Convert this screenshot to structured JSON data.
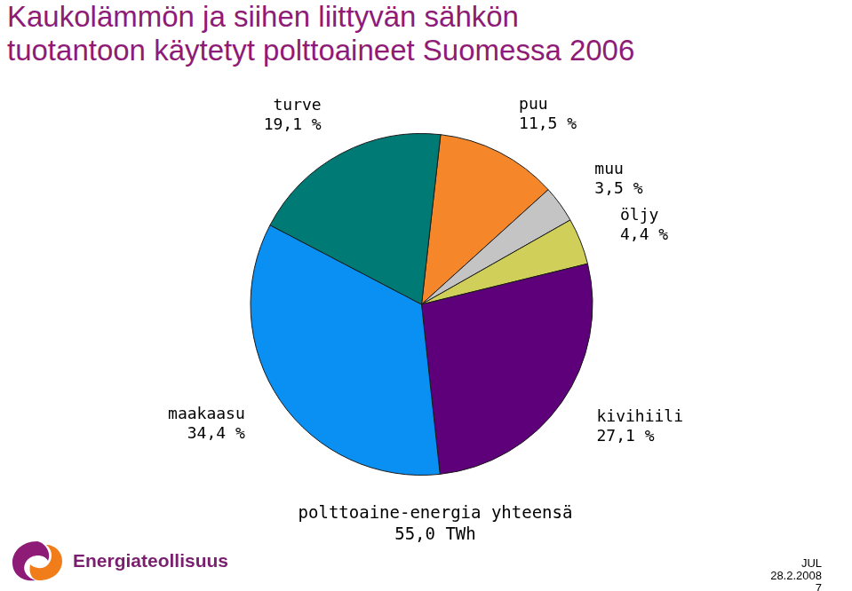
{
  "chart_data": {
    "type": "pie",
    "title": [
      "Kaukolämmön ja siihen liittyvän sähkön",
      "tuotantoon käytetyt polttoaineet  Suomessa 2006"
    ],
    "categories": [
      "puu",
      "muu",
      "öljy",
      "kivihiili",
      "maakaasu",
      "turve"
    ],
    "values": [
      11.5,
      3.5,
      4.4,
      27.1,
      34.4,
      19.1
    ],
    "value_labels": [
      "11,5 %",
      "3,5 %",
      "4,4 %",
      "27,1 %",
      "34,4 %",
      "19,1 %"
    ],
    "colors": [
      "#f5872a",
      "#c4c4c4",
      "#cfcf5a",
      "#5e007a",
      "#0a8ff2",
      "#007a74"
    ],
    "data_labels": true,
    "legend": false,
    "annotations": [
      "polttoaine-energia yhteensä",
      "55,0 TWh"
    ],
    "footer": {
      "logo": "Energiateollisuus",
      "lines": [
        "JUL",
        "28.2.2008",
        "7"
      ]
    }
  }
}
